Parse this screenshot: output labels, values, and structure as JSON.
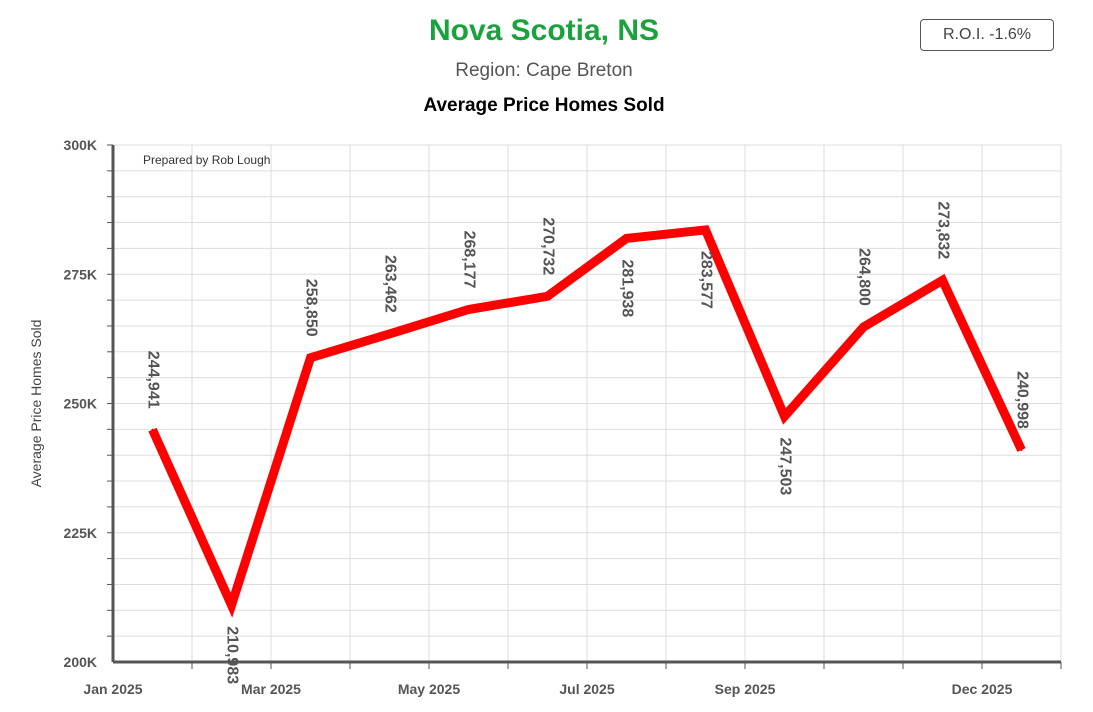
{
  "header": {
    "title": "Nova Scotia, NS",
    "subtitle": "Region: Cape Breton",
    "chart_title": "Average Price Homes Sold",
    "roi": "R.O.I. -1.6%"
  },
  "credit": "Prepared by Rob Lough",
  "colors": {
    "title": "#1aa33c",
    "line": "#ff0000",
    "grid": "#dddddd",
    "axis": "#555555"
  },
  "chart_data": {
    "type": "line",
    "title": "Average Price Homes Sold",
    "ylabel": "Average Price Homes Sold",
    "xlabel": "",
    "ylim": [
      200000,
      300000
    ],
    "y_ticks": [
      {
        "value": 200000,
        "label": "200K"
      },
      {
        "value": 225000,
        "label": "225K"
      },
      {
        "value": 250000,
        "label": "250K"
      },
      {
        "value": 275000,
        "label": "275K"
      },
      {
        "value": 300000,
        "label": "300K"
      }
    ],
    "x_ticks": [
      {
        "index": 0,
        "label": "Jan 2025"
      },
      {
        "index": 2,
        "label": "Mar 2025"
      },
      {
        "index": 4,
        "label": "May 2025"
      },
      {
        "index": 6,
        "label": "Jul 2025"
      },
      {
        "index": 8,
        "label": "Sep 2025"
      },
      {
        "index": 11,
        "label": "Dec 2025"
      }
    ],
    "x": [
      "2025-01",
      "2025-02",
      "2025-03",
      "2025-04",
      "2025-05",
      "2025-06",
      "2025-07",
      "2025-08",
      "2025-09",
      "2025-10",
      "2025-11",
      "2025-12"
    ],
    "series": [
      {
        "values": [
          244941,
          210983,
          258850,
          263462,
          268177,
          270732,
          281938,
          283577,
          247503,
          264800,
          273832,
          240998
        ],
        "labels": [
          "244,941",
          "210,983",
          "258,850",
          "263,462",
          "268,177",
          "270,732",
          "281,938",
          "283,577",
          "247,503",
          "264,800",
          "273,832",
          "240,998"
        ]
      }
    ],
    "grid": true,
    "legend": "none"
  }
}
